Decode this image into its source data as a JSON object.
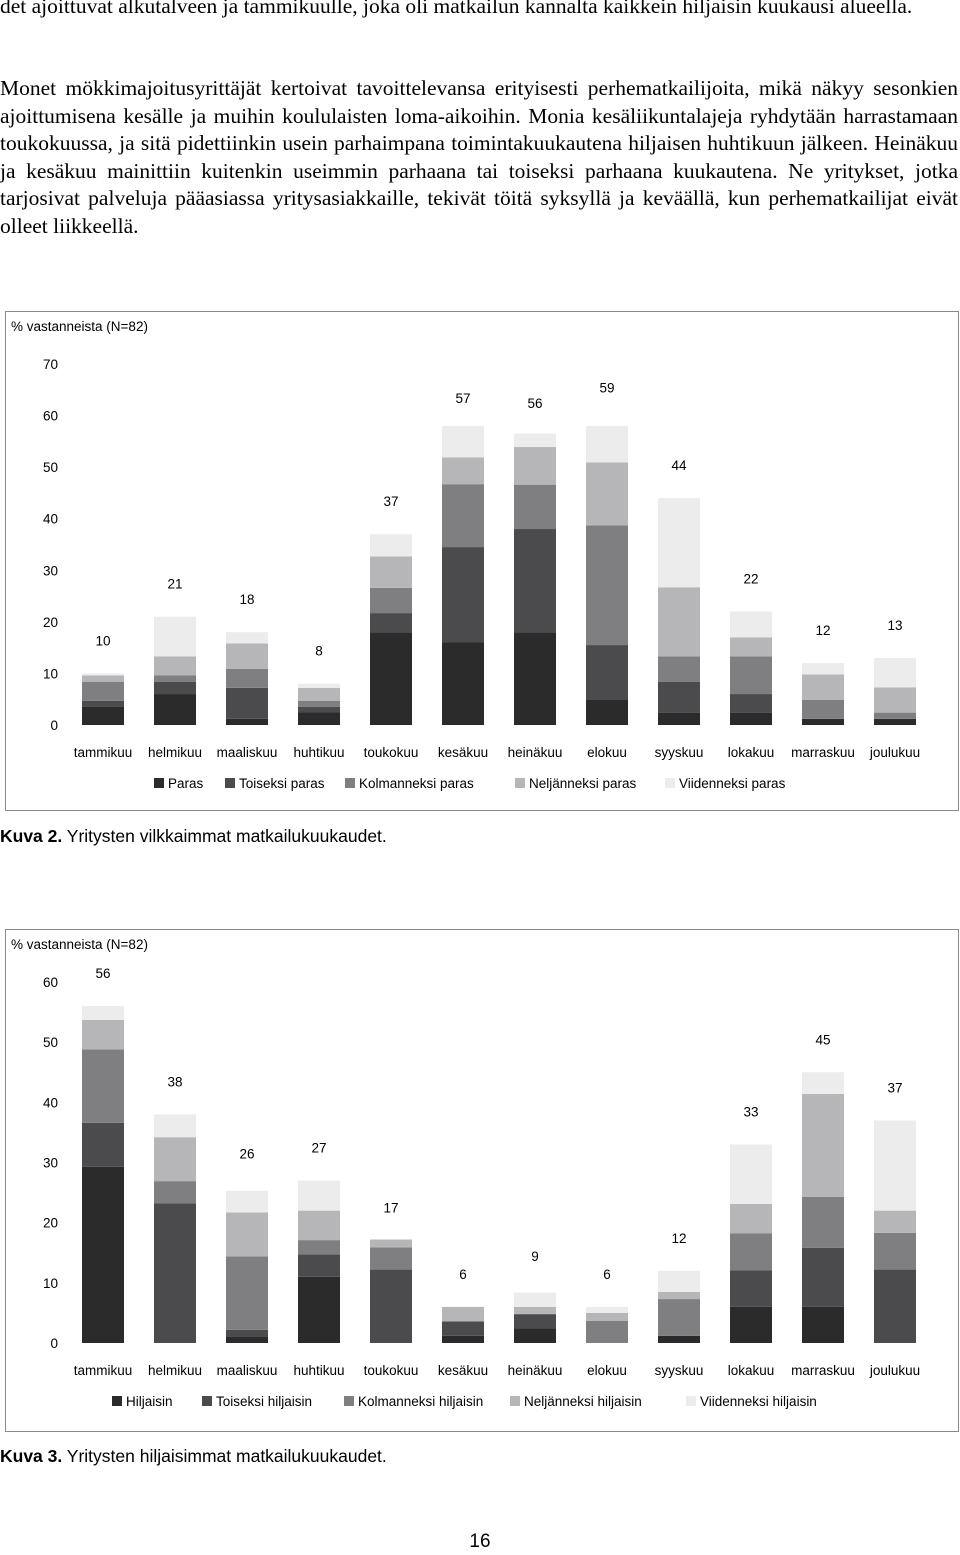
{
  "paragraphs": [
    "det ajoittuvat alkutalveen ja tammikuulle, joka oli matkailun kannalta kaikkein hiljaisin kuukausi alueella.",
    "Monet mökkimajoitusyrittäjät kertoivat tavoittelevansa erityisesti perhematkailijoita, mikä näkyy sesonkien ajoittumisena kesälle ja muihin koululaisten loma-aikoihin. Monia kesäliikuntalajeja ryhdytään harrastamaan toukokuussa, ja sitä pidettiinkin usein parhaimpana toimintakuukautena hiljaisen huhtikuun jälkeen. Heinäkuu ja kesäkuu mainittiin kuitenkin useimmin parhaana tai toiseksi parhaana kuukautena. Ne yritykset, jotka tarjosivat palveluja pääasiassa yritysasiakkaille, tekivät töitä syksyllä ja keväällä, kun perhematkailijat eivät olleet liikkeellä."
  ],
  "colors": [
    "#2b2b2b",
    "#4b4b4d",
    "#7f7f81",
    "#b6b6b8",
    "#ececed"
  ],
  "chart_data": [
    {
      "type": "bar",
      "stacked": true,
      "ylabel": "% vastanneista (N=82)",
      "ylim": [
        0,
        70
      ],
      "yticks": [
        0,
        10,
        20,
        30,
        40,
        50,
        60,
        70
      ],
      "categories": [
        "tammikuu",
        "helmikuu",
        "maaliskuu",
        "huhtikuu",
        "toukokuu",
        "kesäkuu",
        "heinäkuu",
        "elokuu",
        "syyskuu",
        "lokakuu",
        "marraskuu",
        "joulukuu"
      ],
      "totals": [
        10,
        21,
        18,
        8,
        37,
        57,
        56,
        59,
        44,
        22,
        12,
        13
      ],
      "total_labels": [
        "10",
        "21",
        "18",
        "8",
        "37",
        "57",
        "56",
        "59",
        "44",
        "22",
        "12",
        "13"
      ],
      "series": [
        {
          "name": "Paras",
          "values": [
            3.5,
            6,
            1.2,
            2.5,
            18,
            16,
            18,
            5,
            2.4,
            2.4,
            1.2,
            1.2
          ]
        },
        {
          "name": "Toiseksi paras",
          "values": [
            1.2,
            2.4,
            6,
            1,
            3.7,
            18.5,
            20,
            10.5,
            6,
            3.6,
            0,
            0
          ]
        },
        {
          "name": "Kolmanneksi paras",
          "values": [
            3.7,
            1.2,
            3.7,
            1.2,
            4.9,
            12.2,
            8.6,
            23.2,
            4.9,
            7.3,
            3.7,
            1.2
          ]
        },
        {
          "name": "Neljänneksi paras",
          "values": [
            1.2,
            3.7,
            4.9,
            2.5,
            6.1,
            5.2,
            7.3,
            12.2,
            13.4,
            3.7,
            4.9,
            4.9
          ]
        },
        {
          "name": "Viidenneksi paras",
          "values": [
            0.4,
            7.7,
            2.2,
            0.8,
            4.3,
            6.1,
            2.6,
            7.1,
            17.3,
            5,
            2.2,
            5.7
          ]
        }
      ],
      "caption_bold": "Kuva 2.",
      "caption_text": " Yritysten vilkkaimmat matkailukuukaudet."
    },
    {
      "type": "bar",
      "stacked": true,
      "ylabel": "% vastanneista (N=82)",
      "ylim": [
        0,
        60
      ],
      "yticks": [
        0,
        10,
        20,
        30,
        40,
        50,
        60
      ],
      "categories": [
        "tammikuu",
        "helmikuu",
        "maaliskuu",
        "huhtikuu",
        "toukokuu",
        "kesäkuu",
        "heinäkuu",
        "elokuu",
        "syyskuu",
        "lokakuu",
        "marraskuu",
        "joulukuu"
      ],
      "totals": [
        56,
        38,
        26,
        27,
        17,
        6,
        9,
        6,
        12,
        33,
        45,
        37
      ],
      "total_labels": [
        "56",
        "38",
        "26",
        "27",
        "17",
        "6",
        "9",
        "6",
        "12",
        "33",
        "45",
        "37"
      ],
      "series": [
        {
          "name": "Hiljaisin",
          "values": [
            29.3,
            0,
            1,
            11,
            0,
            1.2,
            2.4,
            0,
            1.2,
            6,
            6,
            0
          ]
        },
        {
          "name": "Toiseksi hiljaisin",
          "values": [
            7.3,
            23.2,
            1.2,
            3.7,
            12.2,
            2.4,
            2.4,
            0,
            0,
            6.1,
            9.8,
            12.2
          ]
        },
        {
          "name": "Kolmanneksi hiljaisin",
          "values": [
            12.2,
            3.7,
            12.2,
            2.4,
            3.7,
            0,
            0,
            3.7,
            6.1,
            6.1,
            8.5,
            6.1
          ]
        },
        {
          "name": "Neljänneksi hiljaisin",
          "values": [
            4.9,
            7.3,
            7.3,
            4.9,
            1.3,
            2.4,
            1.2,
            1.3,
            1.2,
            4.9,
            17.1,
            3.7
          ]
        },
        {
          "name": "Viidenneksi hiljaisin",
          "values": [
            2.3,
            3.8,
            3.6,
            5,
            0,
            0,
            2.4,
            1,
            3.5,
            9.9,
            3.6,
            15
          ]
        }
      ],
      "bottom_segments": [
        3.3,
        3.3,
        0,
        0,
        3.3,
        0,
        0,
        0,
        0,
        0,
        0,
        3.3
      ],
      "caption_bold": "Kuva 3.",
      "caption_text": " Yritysten hiljaisimmat matkailukuukaudet."
    }
  ],
  "page_number": "16"
}
